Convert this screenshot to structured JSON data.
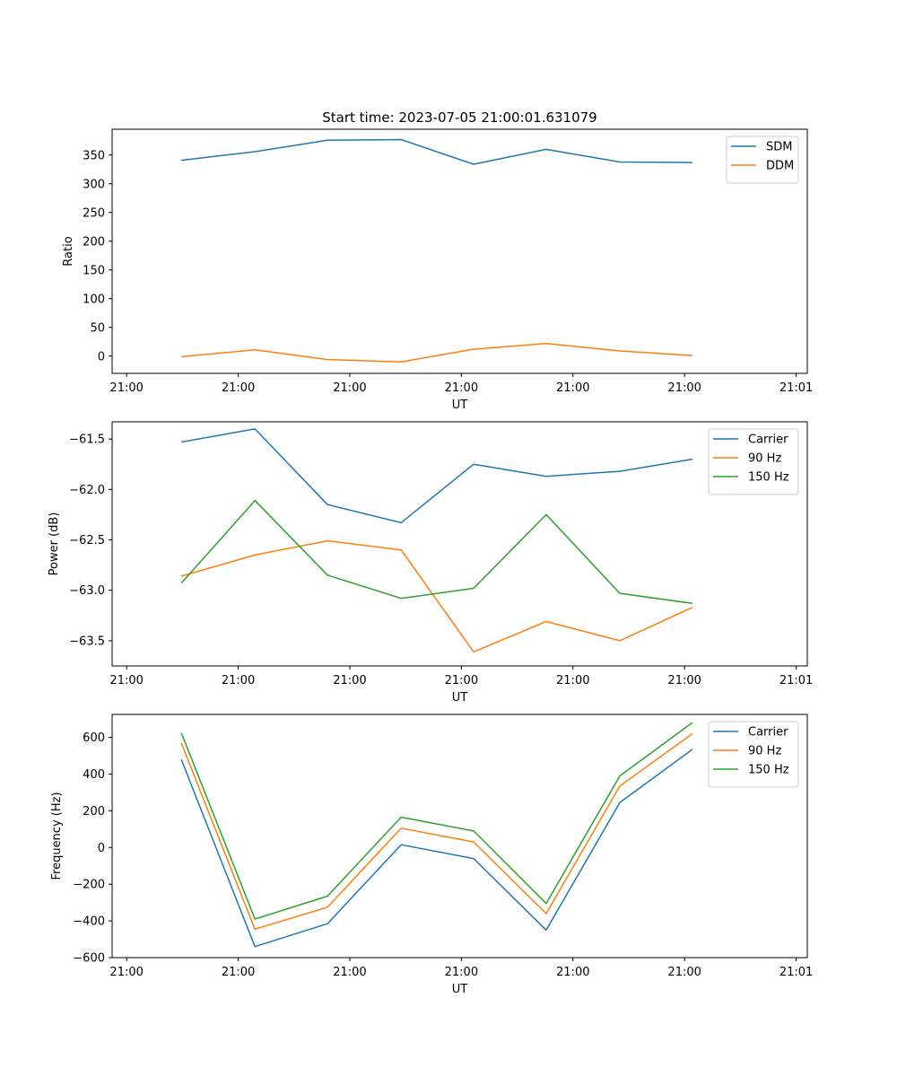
{
  "title": "Start time: 2023-07-05 21:00:01.631079",
  "chart_data": [
    {
      "type": "line",
      "title": "Start time: 2023-07-05 21:00:01.631079",
      "xlabel": "UT",
      "ylabel": "Ratio",
      "legend_position": "top-right",
      "grid": false,
      "xlim": [
        -0.13,
        6.1
      ],
      "ylim": [
        -30,
        395
      ],
      "xticks": [
        0,
        1,
        2,
        3,
        4,
        5,
        6
      ],
      "xtick_labels": [
        "21:00",
        "21:00",
        "21:00",
        "21:00",
        "21:00",
        "21:00",
        "21:01"
      ],
      "yticks": [
        0,
        50,
        100,
        150,
        200,
        250,
        300,
        350
      ],
      "ytick_labels": [
        "0",
        "50",
        "100",
        "150",
        "200",
        "250",
        "300",
        "350"
      ],
      "series": [
        {
          "name": "SDM",
          "color": "#1f77b4",
          "x": [
            0.49,
            1.15,
            1.8,
            2.46,
            3.11,
            3.76,
            4.42,
            5.07
          ],
          "y": [
            341,
            356,
            376,
            377,
            334,
            360,
            338,
            337
          ]
        },
        {
          "name": "DDM",
          "color": "#ff7f0e",
          "x": [
            0.49,
            1.15,
            1.8,
            2.46,
            3.11,
            3.76,
            4.42,
            5.07
          ],
          "y": [
            -1,
            11,
            -6,
            -10,
            12,
            22,
            9,
            1
          ]
        }
      ]
    },
    {
      "type": "line",
      "title": "",
      "xlabel": "UT",
      "ylabel": "Power (dB)",
      "legend_position": "top-right",
      "grid": false,
      "xlim": [
        -0.13,
        6.1
      ],
      "ylim": [
        -63.75,
        -61.33
      ],
      "xticks": [
        0,
        1,
        2,
        3,
        4,
        5,
        6
      ],
      "xtick_labels": [
        "21:00",
        "21:00",
        "21:00",
        "21:00",
        "21:00",
        "21:00",
        "21:01"
      ],
      "yticks": [
        -63.5,
        -63.0,
        -62.5,
        -62.0,
        -61.5
      ],
      "ytick_labels": [
        "−63.5",
        "−63.0",
        "−62.5",
        "−62.0",
        "−61.5"
      ],
      "series": [
        {
          "name": "Carrier",
          "color": "#1f77b4",
          "x": [
            0.49,
            1.15,
            1.8,
            2.46,
            3.11,
            3.76,
            4.42,
            5.07
          ],
          "y": [
            -61.53,
            -61.4,
            -62.15,
            -62.33,
            -61.75,
            -61.87,
            -61.82,
            -61.7
          ]
        },
        {
          "name": "90 Hz",
          "color": "#ff7f0e",
          "x": [
            0.49,
            1.15,
            1.8,
            2.46,
            3.11,
            3.76,
            4.42,
            5.07
          ],
          "y": [
            -62.86,
            -62.65,
            -62.51,
            -62.6,
            -63.61,
            -63.31,
            -63.5,
            -63.17
          ]
        },
        {
          "name": "150 Hz",
          "color": "#2ca02c",
          "x": [
            0.49,
            1.15,
            1.8,
            2.46,
            3.11,
            3.76,
            4.42,
            5.07
          ],
          "y": [
            -62.93,
            -62.11,
            -62.85,
            -63.08,
            -62.98,
            -62.25,
            -63.03,
            -63.13
          ]
        }
      ]
    },
    {
      "type": "line",
      "title": "",
      "xlabel": "UT",
      "ylabel": "Frequency (Hz)",
      "legend_position": "top-right",
      "grid": false,
      "xlim": [
        -0.13,
        6.1
      ],
      "ylim": [
        -600,
        725
      ],
      "xticks": [
        0,
        1,
        2,
        3,
        4,
        5,
        6
      ],
      "xtick_labels": [
        "21:00",
        "21:00",
        "21:00",
        "21:00",
        "21:00",
        "21:00",
        "21:01"
      ],
      "yticks": [
        -600,
        -400,
        -200,
        0,
        200,
        400,
        600
      ],
      "ytick_labels": [
        "−600",
        "−400",
        "−200",
        "0",
        "200",
        "400",
        "600"
      ],
      "series": [
        {
          "name": "Carrier",
          "color": "#1f77b4",
          "x": [
            0.49,
            1.15,
            1.8,
            2.46,
            3.11,
            3.76,
            4.42,
            5.07
          ],
          "y": [
            480,
            -540,
            -415,
            15,
            -60,
            -450,
            245,
            535
          ]
        },
        {
          "name": "90 Hz",
          "color": "#ff7f0e",
          "x": [
            0.49,
            1.15,
            1.8,
            2.46,
            3.11,
            3.76,
            4.42,
            5.07
          ],
          "y": [
            570,
            -445,
            -325,
            105,
            30,
            -360,
            335,
            620
          ]
        },
        {
          "name": "150 Hz",
          "color": "#2ca02c",
          "x": [
            0.49,
            1.15,
            1.8,
            2.46,
            3.11,
            3.76,
            4.42,
            5.07
          ],
          "y": [
            625,
            -390,
            -265,
            165,
            90,
            -305,
            390,
            680
          ]
        }
      ]
    }
  ]
}
